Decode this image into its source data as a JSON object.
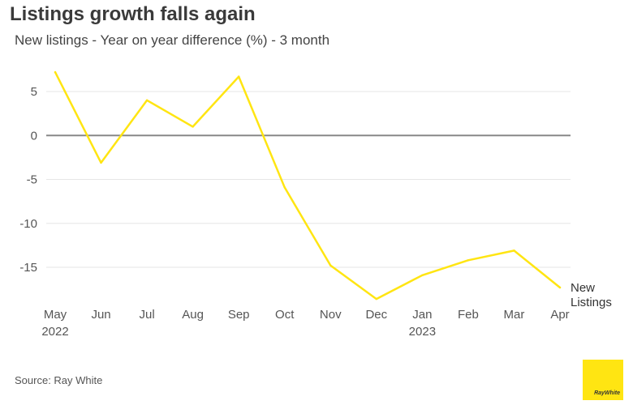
{
  "title": "Listings growth falls again",
  "subtitle": "New listings - Year on year difference (%) - 3 month",
  "source": "Source: Ray White",
  "logo_text": "RayWhite",
  "colors": {
    "series": "#ffe512",
    "grid": "#e6e6e6",
    "zero_line": "#888888",
    "text": "#555555"
  },
  "chart_data": {
    "type": "line",
    "title": "Listings growth falls again",
    "subtitle": "New listings - Year on year difference (%) - 3 month",
    "x_labels": [
      "May",
      "Jun",
      "Jul",
      "Aug",
      "Sep",
      "Oct",
      "Nov",
      "Dec",
      "Jan",
      "Feb",
      "Mar",
      "Apr"
    ],
    "x_year_labels": [
      {
        "index": 0,
        "label": "2022"
      },
      {
        "index": 8,
        "label": "2023"
      }
    ],
    "series": [
      {
        "name": "New Listings",
        "name_lines": [
          "New",
          "Listings"
        ],
        "color": "#ffe512",
        "values": [
          7.2,
          -3.1,
          4.0,
          1.0,
          6.7,
          -5.9,
          -14.8,
          -18.6,
          -15.9,
          -14.2,
          -13.1,
          -17.3
        ]
      }
    ],
    "ylim": [
      -19,
      8
    ],
    "y_ticks": [
      5,
      0,
      -5,
      -10,
      -15
    ],
    "grid": true,
    "legend": "end-label"
  }
}
